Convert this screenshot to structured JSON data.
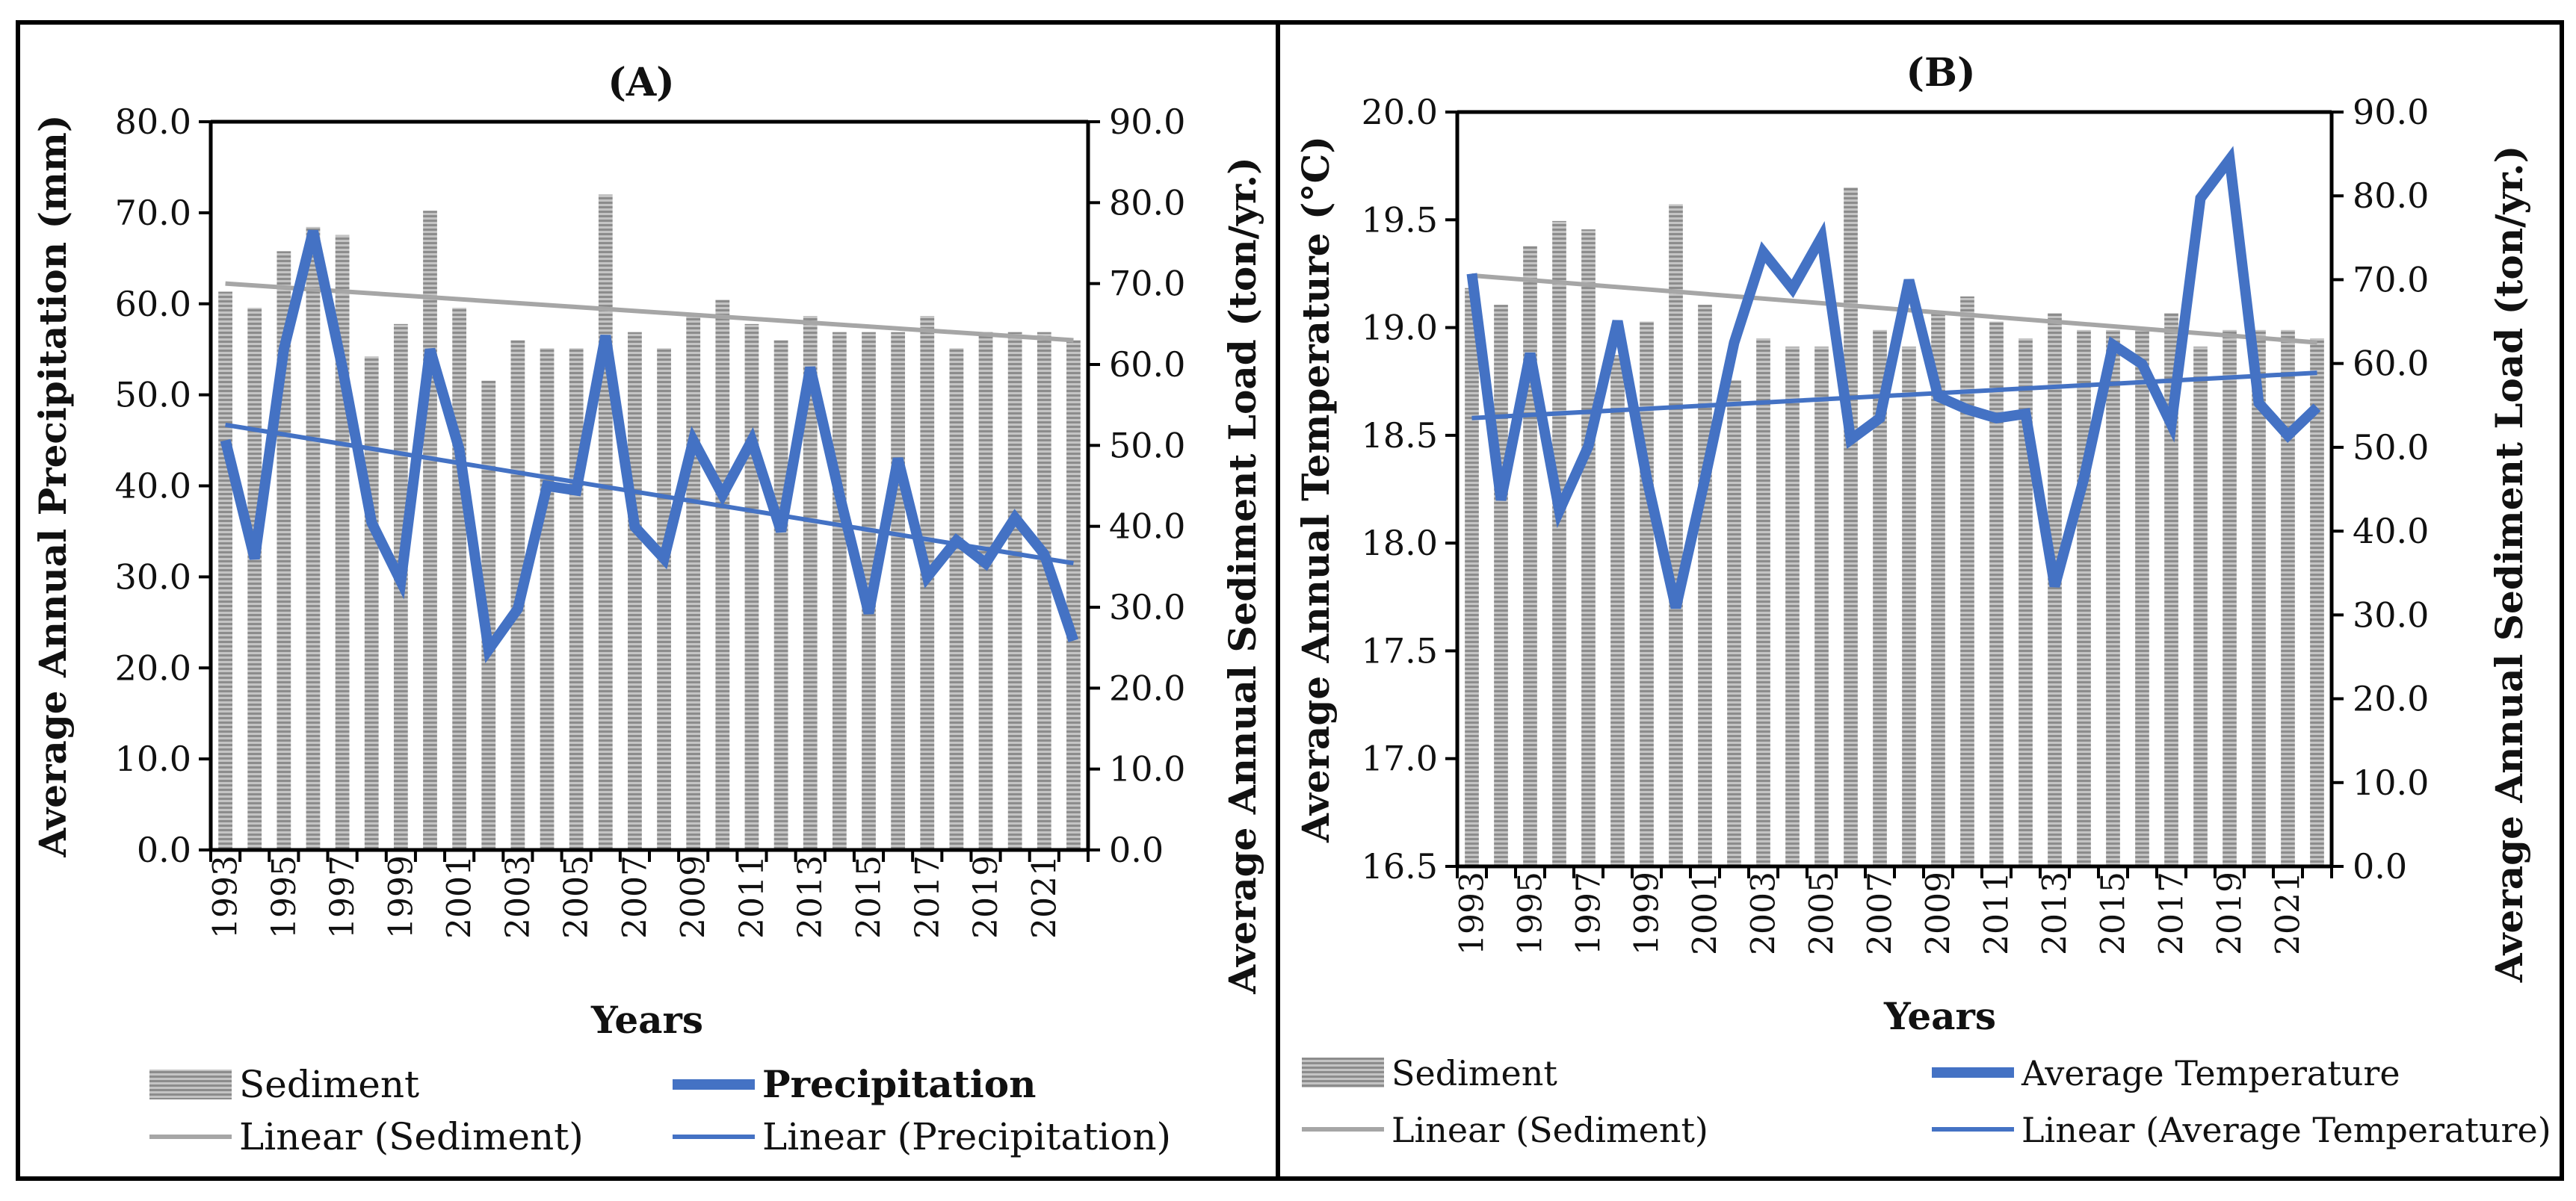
{
  "chart_data": [
    {
      "id": "A",
      "type": "bar",
      "title": "(A)",
      "xlabel": "Years",
      "ylabel_left": "Average Annual Precipitation (mm)",
      "ylabel_right": "Average Annual Sediment Load (ton/yr.)",
      "x": [
        1993,
        1994,
        1995,
        1996,
        1997,
        1998,
        1999,
        2000,
        2001,
        2002,
        2003,
        2004,
        2005,
        2006,
        2007,
        2008,
        2009,
        2010,
        2011,
        2012,
        2013,
        2014,
        2015,
        2016,
        2017,
        2018,
        2019,
        2020,
        2021,
        2022
      ],
      "x_tick_labels": [
        "1993",
        "1995",
        "1997",
        "1999",
        "2001",
        "2003",
        "2005",
        "2007",
        "2009",
        "2011",
        "2013",
        "2015",
        "2017",
        "2019",
        "2021"
      ],
      "ylim_left": [
        0,
        80
      ],
      "yticks_left": [
        "0.0",
        "10.0",
        "20.0",
        "30.0",
        "40.0",
        "50.0",
        "60.0",
        "70.0",
        "80.0"
      ],
      "ylim_right": [
        0,
        90
      ],
      "yticks_right": [
        "0.0",
        "10.0",
        "20.0",
        "30.0",
        "40.0",
        "50.0",
        "60.0",
        "70.0",
        "80.0",
        "90.0"
      ],
      "series": [
        {
          "name": "Sediment",
          "kind": "bar",
          "axis": "right",
          "color": "#a6a6a6",
          "values": [
            69,
            67,
            74,
            77,
            76,
            61,
            65,
            79,
            67,
            58,
            63,
            62,
            62,
            81,
            64,
            62,
            66,
            68,
            65,
            63,
            66,
            64,
            64,
            64,
            66,
            62,
            64,
            64,
            64,
            63
          ]
        },
        {
          "name": "Precipitation",
          "kind": "line",
          "axis": "left",
          "color": "#4472c4",
          "values": [
            45.0,
            32.0,
            55.0,
            68.0,
            53.0,
            36.0,
            29.5,
            55.0,
            44.0,
            22.0,
            26.5,
            40.0,
            39.5,
            56.5,
            35.5,
            32.0,
            45.0,
            39.0,
            45.0,
            35.0,
            53.0,
            39.0,
            26.0,
            43.0,
            30.0,
            34.0,
            31.5,
            36.5,
            32.5,
            23.0
          ]
        },
        {
          "name": "Linear (Sediment)",
          "kind": "trend",
          "axis": "right",
          "color": "#a6a6a6",
          "start": 70.0,
          "end": 63.0
        },
        {
          "name": "Linear (Precipitation)",
          "kind": "trend",
          "axis": "left",
          "color": "#4472c4",
          "start": 46.7,
          "end": 31.5
        }
      ],
      "legend": [
        {
          "label": "Sediment",
          "marker": "bar"
        },
        {
          "label": "Precipitation",
          "marker": "thick-line"
        },
        {
          "label": "Linear (Sediment)",
          "marker": "gray-line"
        },
        {
          "label": "Linear (Precipitation)",
          "marker": "blue-line"
        }
      ]
    },
    {
      "id": "B",
      "type": "bar",
      "title": "(B)",
      "xlabel": "Years",
      "ylabel_left": "Average Annual Temperature (°C)",
      "ylabel_right": "Average Annual Sediment Load (ton/yr.)",
      "x": [
        1993,
        1994,
        1995,
        1996,
        1997,
        1998,
        1999,
        2000,
        2001,
        2002,
        2003,
        2004,
        2005,
        2006,
        2007,
        2008,
        2009,
        2010,
        2011,
        2012,
        2013,
        2014,
        2015,
        2016,
        2017,
        2018,
        2019,
        2020,
        2021,
        2022
      ],
      "x_tick_labels": [
        "1993",
        "1995",
        "1997",
        "1999",
        "2001",
        "2003",
        "2005",
        "2007",
        "2009",
        "2011",
        "2013",
        "2015",
        "2017",
        "2019",
        "2021"
      ],
      "ylim_left": [
        16.5,
        20.0
      ],
      "yticks_left": [
        "16.5",
        "17.0",
        "17.5",
        "18.0",
        "18.5",
        "19.0",
        "19.5",
        "20.0"
      ],
      "ylim_right": [
        0,
        90
      ],
      "yticks_right": [
        "0.0",
        "10.0",
        "20.0",
        "30.0",
        "40.0",
        "50.0",
        "60.0",
        "70.0",
        "80.0",
        "90.0"
      ],
      "series": [
        {
          "name": "Sediment",
          "kind": "bar",
          "axis": "right",
          "color": "#a6a6a6",
          "values": [
            69,
            67,
            74,
            77,
            76,
            61,
            65,
            79,
            67,
            58,
            63,
            62,
            62,
            81,
            64,
            62,
            66,
            68,
            65,
            63,
            66,
            64,
            64,
            64,
            66,
            62,
            64,
            64,
            64,
            63
          ]
        },
        {
          "name": "Average Temperature",
          "kind": "line",
          "axis": "left",
          "color": "#4472c4",
          "values": [
            19.25,
            18.2,
            18.88,
            18.15,
            18.45,
            19.03,
            18.3,
            17.7,
            18.3,
            18.93,
            19.35,
            19.18,
            19.42,
            18.48,
            18.58,
            19.22,
            18.68,
            18.62,
            18.58,
            18.6,
            17.8,
            18.3,
            18.92,
            18.83,
            18.55,
            19.6,
            19.78,
            18.65,
            18.5,
            18.63
          ]
        },
        {
          "name": "Linear (Sediment)",
          "kind": "trend",
          "axis": "right",
          "color": "#a6a6a6",
          "start": 70.5,
          "end": 62.5
        },
        {
          "name": "Linear (Average Temperature)",
          "kind": "trend",
          "axis": "left",
          "color": "#4472c4",
          "start": 18.58,
          "end": 18.79
        }
      ],
      "legend": [
        {
          "label": "Sediment",
          "marker": "bar"
        },
        {
          "label": "Average Temperature",
          "marker": "thick-line"
        },
        {
          "label": "Linear (Sediment)",
          "marker": "gray-line"
        },
        {
          "label": "Linear (Average Temperature)",
          "marker": "blue-line"
        }
      ]
    }
  ]
}
